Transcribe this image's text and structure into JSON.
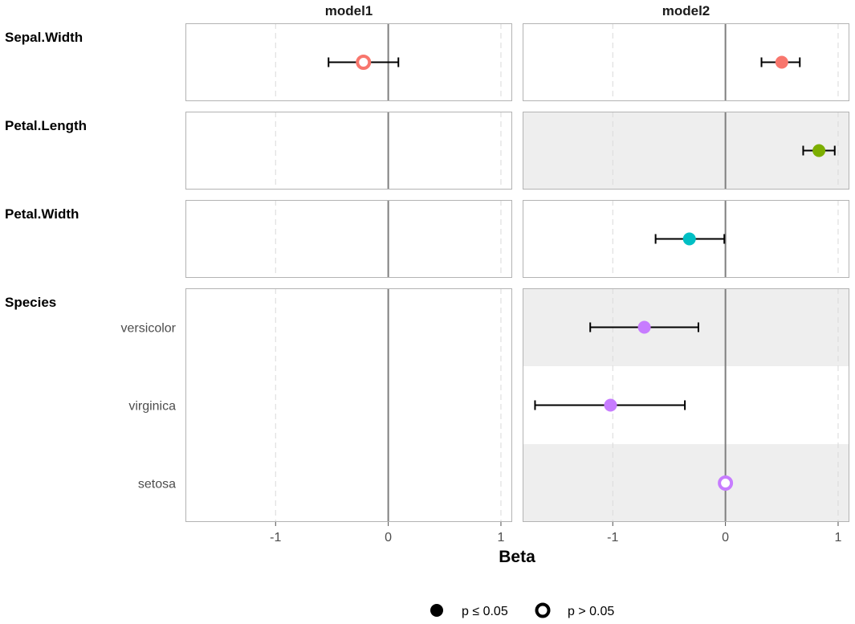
{
  "chart_data": {
    "type": "forest",
    "xlabel": "Beta",
    "xlim": [
      -1.8,
      1.1
    ],
    "x_ticks": [
      -1,
      0,
      1
    ],
    "x_tick_labels": [
      "-1",
      "0",
      "1"
    ],
    "reference_line": 0,
    "models": [
      "model1",
      "model2"
    ],
    "colors": {
      "Sepal.Width": "#F8766D",
      "Petal.Length": "#7CAE00",
      "Petal.Width": "#00BFC4",
      "Species": "#C77CFF"
    },
    "groups": [
      {
        "name": "Sepal.Width",
        "levels": [
          ""
        ]
      },
      {
        "name": "Petal.Length",
        "levels": [
          ""
        ]
      },
      {
        "name": "Petal.Width",
        "levels": [
          ""
        ]
      },
      {
        "name": "Species",
        "levels": [
          "versicolor",
          "virginica",
          "setosa"
        ]
      }
    ],
    "shaded_rows": [
      {
        "model": "model2",
        "group": "Petal.Length",
        "level": ""
      },
      {
        "model": "model2",
        "group": "Species",
        "level": "versicolor"
      },
      {
        "model": "model2",
        "group": "Species",
        "level": "setosa"
      }
    ],
    "points": [
      {
        "model": "model1",
        "group": "Sepal.Width",
        "level": "",
        "estimate": -0.22,
        "ci_low": -0.53,
        "ci_high": 0.09,
        "significant": false
      },
      {
        "model": "model2",
        "group": "Sepal.Width",
        "level": "",
        "estimate": 0.5,
        "ci_low": 0.32,
        "ci_high": 0.66,
        "significant": true
      },
      {
        "model": "model2",
        "group": "Petal.Length",
        "level": "",
        "estimate": 0.83,
        "ci_low": 0.69,
        "ci_high": 0.97,
        "significant": true
      },
      {
        "model": "model2",
        "group": "Petal.Width",
        "level": "",
        "estimate": -0.32,
        "ci_low": -0.62,
        "ci_high": -0.01,
        "significant": true
      },
      {
        "model": "model2",
        "group": "Species",
        "level": "versicolor",
        "estimate": -0.72,
        "ci_low": -1.2,
        "ci_high": -0.24,
        "significant": true
      },
      {
        "model": "model2",
        "group": "Species",
        "level": "virginica",
        "estimate": -1.02,
        "ci_low": -1.69,
        "ci_high": -0.36,
        "significant": true
      },
      {
        "model": "model2",
        "group": "Species",
        "level": "setosa",
        "estimate": 0.0,
        "ci_low": null,
        "ci_high": null,
        "significant": false
      }
    ],
    "legend": {
      "placement": "bottom",
      "items": [
        {
          "label": "p ≤ 0.05",
          "shape": "filled-circle"
        },
        {
          "label": "p > 0.05",
          "shape": "hollow-circle"
        }
      ]
    }
  }
}
